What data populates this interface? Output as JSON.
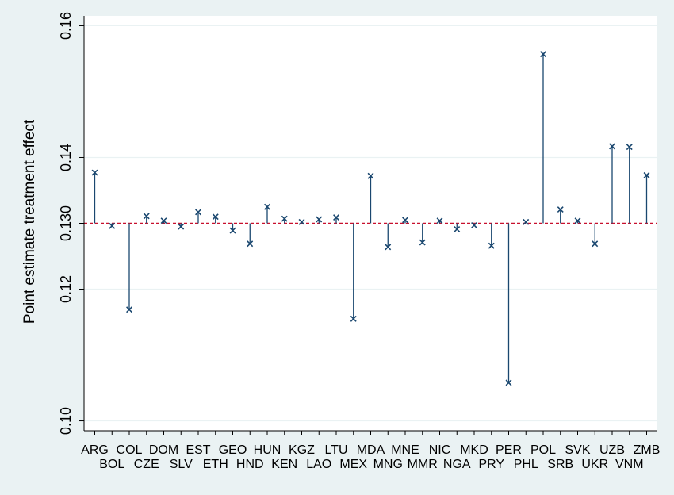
{
  "chart_data": {
    "type": "scatter",
    "subtype": "lollipop-from-reference-line",
    "title": "",
    "xlabel": "",
    "ylabel": "Point estimate treatment effect",
    "ylim": [
      0.0985,
      0.1615
    ],
    "yticks": [
      0.1,
      0.12,
      0.13,
      0.14,
      0.16
    ],
    "ytick_labels": [
      "0.10",
      "0.12",
      "0.130",
      "0.14",
      "0.16"
    ],
    "reference_line": 0.13,
    "grid": true,
    "marker": "x",
    "colors": {
      "marker": "#1a476f",
      "reference_line": "#c8102e",
      "grid": "#eaf2f3",
      "plot_bg": "#ffffff",
      "page_bg": "#eaf2f3"
    },
    "categories": [
      "ARG",
      "BOL",
      "COL",
      "CZE",
      "DOM",
      "SLV",
      "EST",
      "ETH",
      "GEO",
      "HND",
      "HUN",
      "KEN",
      "KGZ",
      "LAO",
      "LTU",
      "MEX",
      "MDA",
      "MNG",
      "MNE",
      "MMR",
      "NIC",
      "NGA",
      "MKD",
      "PRY",
      "PER",
      "PHL",
      "POL",
      "SRB",
      "SVK",
      "UKR",
      "UZB",
      "VNM",
      "ZMB"
    ],
    "values": [
      0.1377,
      0.1296,
      0.1169,
      0.1311,
      0.1304,
      0.1295,
      0.1317,
      0.131,
      0.1289,
      0.1269,
      0.1325,
      0.1307,
      0.1302,
      0.1306,
      0.1309,
      0.1155,
      0.1372,
      0.1264,
      0.1305,
      0.1271,
      0.1304,
      0.1291,
      0.1297,
      0.1266,
      0.1058,
      0.1302,
      0.1557,
      0.1321,
      0.1304,
      0.1269,
      0.1417,
      0.1416,
      0.1373
    ]
  }
}
